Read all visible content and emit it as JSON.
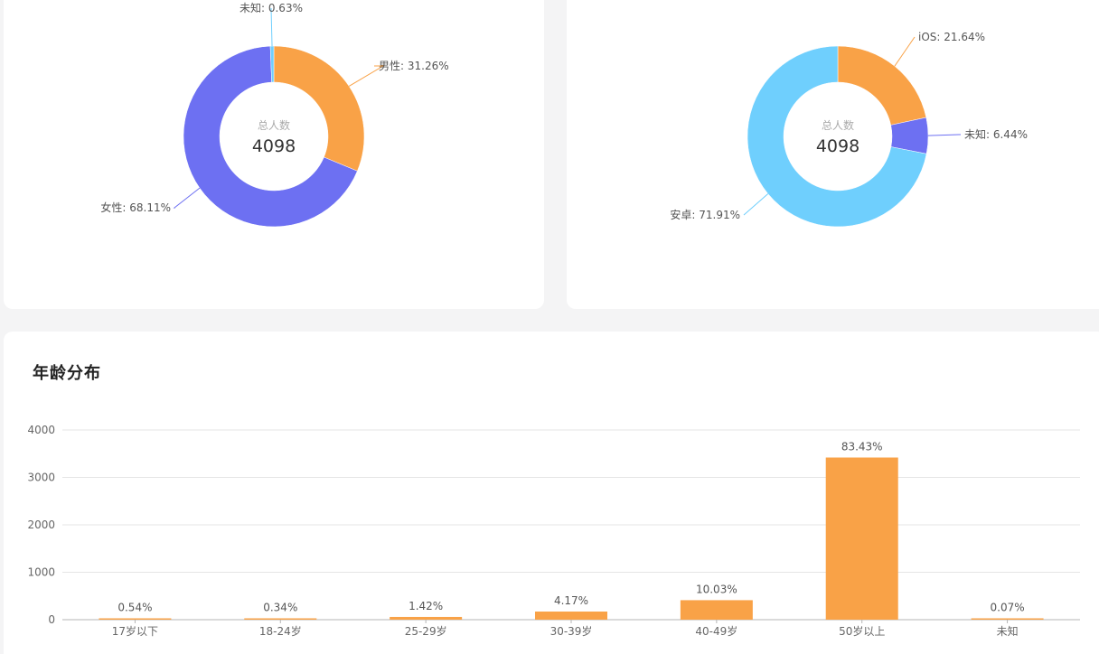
{
  "colors": {
    "orange": "#f9a247",
    "purple": "#6d70f2",
    "lightblue": "#6fcffd",
    "deepblue": "#4f6ef2",
    "grid": "#e5e5e5",
    "axis": "#b5b5b5",
    "tick": "#666666",
    "center_label": "#aaaaaa"
  },
  "chart_data": [
    {
      "type": "pie",
      "id": "gender",
      "center_label": "总人数",
      "center_value": "4098",
      "slices": [
        {
          "name": "男性",
          "value": 31.26,
          "label": "男性: 31.26%",
          "color": "#f9a247"
        },
        {
          "name": "女性",
          "value": 68.11,
          "label": "女性: 68.11%",
          "color": "#6d70f2"
        },
        {
          "name": "未知",
          "value": 0.63,
          "label": "未知: 0.63%",
          "color": "#6fcffd"
        }
      ]
    },
    {
      "type": "pie",
      "id": "device",
      "center_label": "总人数",
      "center_value": "4098",
      "slices": [
        {
          "name": "iOS",
          "value": 21.64,
          "label": "iOS: 21.64%",
          "color": "#f9a247"
        },
        {
          "name": "未知",
          "value": 6.44,
          "label": "未知: 6.44%",
          "color": "#6d70f2"
        },
        {
          "name": "安卓",
          "value": 71.91,
          "label": "安卓: 71.91%",
          "color": "#6fcffd"
        }
      ]
    },
    {
      "type": "bar",
      "id": "age",
      "title": "年龄分布",
      "categories": [
        "17岁以下",
        "18-24岁",
        "25-29岁",
        "30-39岁",
        "40-49岁",
        "50岁以上",
        "未知"
      ],
      "values": [
        22,
        14,
        58,
        171,
        411,
        3419,
        3
      ],
      "data_labels": [
        "0.54%",
        "0.34%",
        "1.42%",
        "4.17%",
        "10.03%",
        "83.43%",
        "0.07%"
      ],
      "ylim": [
        0,
        4000
      ],
      "yticks": [
        "0",
        "1000",
        "2000",
        "3000",
        "4000"
      ],
      "grid": true,
      "color": "#f9a247"
    }
  ]
}
